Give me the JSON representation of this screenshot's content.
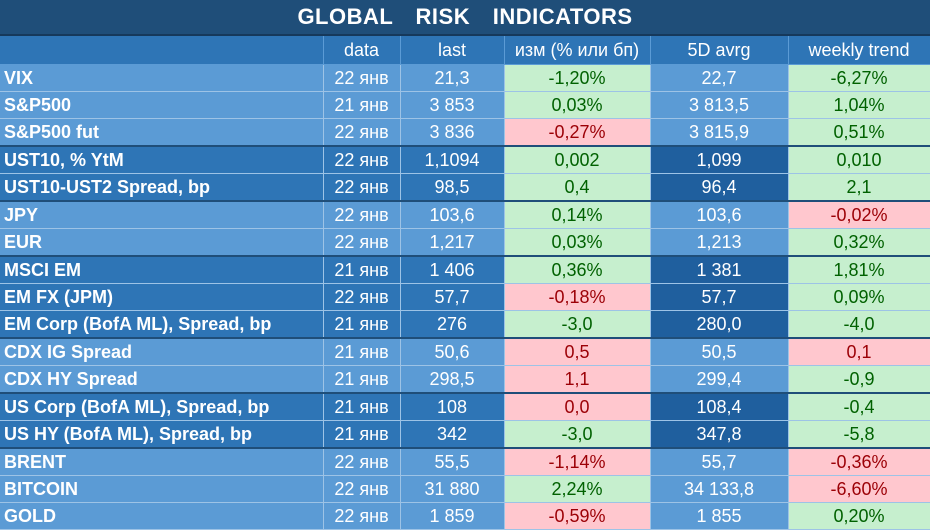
{
  "title": "GLOBAL   RISK   INDICATORS",
  "columns": [
    "",
    "data",
    "last",
    "изм (% или бп)",
    "5D avrg",
    "weekly trend"
  ],
  "groups": [
    {
      "shade": "light",
      "rows": [
        {
          "name": "VIX",
          "date": "22 янв",
          "last": "21,3",
          "chg": "-1,20%",
          "chg_dir": "pos",
          "avg": "22,7",
          "trend": "-6,27%",
          "trend_dir": "pos"
        },
        {
          "name": "S&P500",
          "date": "21 янв",
          "last": "3 853",
          "chg": "0,03%",
          "chg_dir": "pos",
          "avg": "3 813,5",
          "trend": "1,04%",
          "trend_dir": "pos"
        },
        {
          "name": "S&P500 fut",
          "date": "22 янв",
          "last": "3 836",
          "chg": "-0,27%",
          "chg_dir": "neg",
          "avg": "3 815,9",
          "trend": "0,51%",
          "trend_dir": "pos"
        }
      ]
    },
    {
      "shade": "dark",
      "rows": [
        {
          "name": "UST10, % YtM",
          "date": "22 янв",
          "last": "1,1094",
          "chg": "0,002",
          "chg_dir": "pos",
          "avg": "1,099",
          "trend": "0,010",
          "trend_dir": "pos"
        },
        {
          "name": "UST10-UST2 Spread, bp",
          "date": "22 янв",
          "last": "98,5",
          "chg": "0,4",
          "chg_dir": "pos",
          "avg": "96,4",
          "trend": "2,1",
          "trend_dir": "pos"
        }
      ]
    },
    {
      "shade": "light",
      "rows": [
        {
          "name": "JPY",
          "date": "22 янв",
          "last": "103,6",
          "chg": "0,14%",
          "chg_dir": "pos",
          "avg": "103,6",
          "trend": "-0,02%",
          "trend_dir": "neg"
        },
        {
          "name": "EUR",
          "date": "22 янв",
          "last": "1,217",
          "chg": "0,03%",
          "chg_dir": "pos",
          "avg": "1,213",
          "trend": "0,32%",
          "trend_dir": "pos"
        }
      ]
    },
    {
      "shade": "dark",
      "rows": [
        {
          "name": "MSCI EM",
          "date": "21 янв",
          "last": "1 406",
          "chg": "0,36%",
          "chg_dir": "pos",
          "avg": "1 381",
          "trend": "1,81%",
          "trend_dir": "pos"
        },
        {
          "name": "EM FX (JPM)",
          "date": "22 янв",
          "last": "57,7",
          "chg": "-0,18%",
          "chg_dir": "neg",
          "avg": "57,7",
          "trend": "0,09%",
          "trend_dir": "pos"
        },
        {
          "name": "EM Corp (BofA ML), Spread, bp",
          "date": "21 янв",
          "last": "276",
          "chg": "-3,0",
          "chg_dir": "pos",
          "avg": "280,0",
          "trend": "-4,0",
          "trend_dir": "pos"
        }
      ]
    },
    {
      "shade": "light",
      "rows": [
        {
          "name": "CDX IG Spread",
          "date": "21 янв",
          "last": "50,6",
          "chg": "0,5",
          "chg_dir": "neg",
          "avg": "50,5",
          "trend": "0,1",
          "trend_dir": "neg"
        },
        {
          "name": "CDX HY Spread",
          "date": "21 янв",
          "last": "298,5",
          "chg": "1,1",
          "chg_dir": "neg",
          "avg": "299,4",
          "trend": "-0,9",
          "trend_dir": "pos"
        }
      ]
    },
    {
      "shade": "dark",
      "rows": [
        {
          "name": "US Corp (BofA ML), Spread, bp",
          "date": "21 янв",
          "last": "108",
          "chg": "0,0",
          "chg_dir": "neg",
          "avg": "108,4",
          "trend": "-0,4",
          "trend_dir": "pos"
        },
        {
          "name": "US HY (BofA ML), Spread, bp",
          "date": "21 янв",
          "last": "342",
          "chg": "-3,0",
          "chg_dir": "pos",
          "avg": "347,8",
          "trend": "-5,8",
          "trend_dir": "pos"
        }
      ]
    },
    {
      "shade": "light",
      "rows": [
        {
          "name": "BRENT",
          "date": "22 янв",
          "last": "55,5",
          "chg": "-1,14%",
          "chg_dir": "neg",
          "avg": "55,7",
          "trend": "-0,36%",
          "trend_dir": "neg"
        },
        {
          "name": "BITCOIN",
          "date": "22 янв",
          "last": "31 880",
          "chg": "2,24%",
          "chg_dir": "pos",
          "avg": "34 133,8",
          "trend": "-6,60%",
          "trend_dir": "neg"
        },
        {
          "name": "GOLD",
          "date": "22 янв",
          "last": "1 859",
          "chg": "-0,59%",
          "chg_dir": "neg",
          "avg": "1 855",
          "trend": "0,20%",
          "trend_dir": "pos"
        }
      ]
    }
  ]
}
